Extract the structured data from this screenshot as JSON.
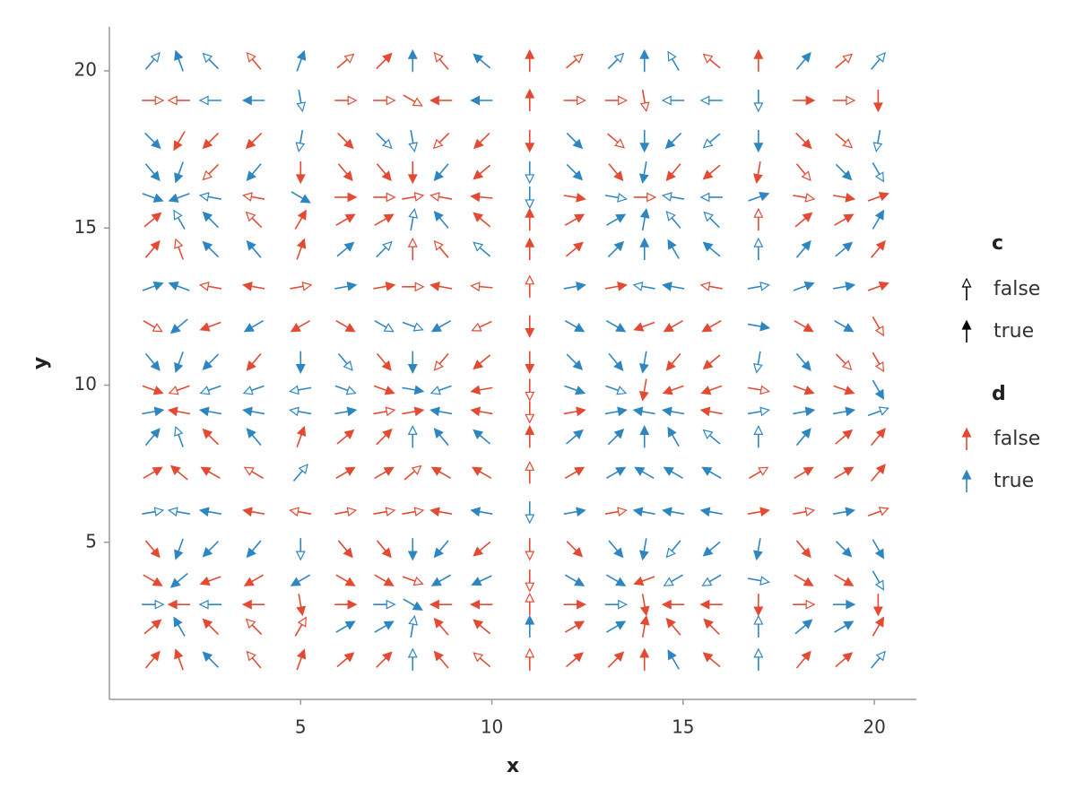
{
  "chart_data": {
    "type": "quiver",
    "xlabel": "x",
    "ylabel": "y",
    "x": [
      1.13,
      1.83,
      2.65,
      3.78,
      5,
      6.17,
      7.18,
      7.93,
      8.68,
      9.74,
      10.99,
      12.16,
      13.24,
      13.99,
      14.75,
      15.75,
      16.97,
      18.15,
      19.2,
      20.1
    ],
    "y": [
      20.31,
      19.06,
      17.78,
      16.78,
      15.98,
      15.26,
      14.32,
      13.13,
      11.88,
      10.74,
      9.86,
      9.15,
      8.35,
      7.21,
      5.96,
      4.79,
      3.79,
      3.02,
      2.31,
      1.26
    ],
    "angles": [
      [
        50,
        110,
        135,
        130,
        70,
        40,
        45,
        90,
        130,
        140,
        90,
        40,
        45,
        90,
        120,
        140,
        90,
        50,
        40,
        50
      ],
      [
        0,
        180,
        180,
        180,
        -80,
        0,
        0,
        -30,
        180,
        180,
        90,
        0,
        0,
        -80,
        180,
        180,
        -90,
        0,
        0,
        -90
      ],
      [
        -45,
        -120,
        -135,
        -135,
        -100,
        -45,
        -45,
        -80,
        -135,
        -135,
        -90,
        -45,
        -40,
        -90,
        -135,
        -140,
        -90,
        -45,
        -40,
        -100
      ],
      [
        -50,
        -110,
        -135,
        -130,
        -90,
        -50,
        -50,
        -90,
        -130,
        -140,
        -90,
        -45,
        -50,
        -100,
        -130,
        -140,
        -100,
        -50,
        -45,
        -60
      ],
      [
        -20,
        -160,
        170,
        170,
        -30,
        0,
        0,
        10,
        170,
        175,
        -90,
        -10,
        -10,
        0,
        170,
        180,
        20,
        -10,
        -10,
        20
      ],
      [
        40,
        120,
        135,
        135,
        60,
        30,
        30,
        80,
        130,
        140,
        90,
        30,
        30,
        80,
        130,
        135,
        90,
        40,
        30,
        60
      ],
      [
        50,
        110,
        135,
        130,
        70,
        40,
        45,
        90,
        130,
        140,
        90,
        40,
        45,
        90,
        120,
        140,
        90,
        50,
        40,
        50
      ],
      [
        20,
        160,
        170,
        170,
        10,
        10,
        10,
        0,
        170,
        175,
        90,
        10,
        10,
        170,
        170,
        170,
        10,
        20,
        10,
        20
      ],
      [
        -30,
        -140,
        -160,
        -150,
        -150,
        -30,
        -30,
        -20,
        -150,
        -155,
        -90,
        -30,
        -30,
        -160,
        -150,
        -150,
        -10,
        -30,
        -30,
        -60
      ],
      [
        -50,
        -110,
        -135,
        -130,
        -90,
        -50,
        -50,
        -90,
        -130,
        -140,
        -90,
        -45,
        -50,
        -100,
        -130,
        -140,
        -100,
        -50,
        -45,
        -60
      ],
      [
        -20,
        -160,
        -160,
        -160,
        -170,
        -20,
        -20,
        -10,
        -160,
        -170,
        -90,
        -20,
        -20,
        -100,
        -160,
        -160,
        -10,
        -20,
        -20,
        -60
      ],
      [
        10,
        170,
        170,
        170,
        170,
        10,
        10,
        10,
        170,
        170,
        -90,
        10,
        10,
        170,
        170,
        170,
        10,
        10,
        10,
        20
      ],
      [
        50,
        110,
        135,
        130,
        70,
        40,
        45,
        90,
        130,
        140,
        90,
        40,
        45,
        90,
        120,
        140,
        90,
        50,
        40,
        50
      ],
      [
        30,
        140,
        150,
        150,
        50,
        30,
        30,
        40,
        150,
        150,
        90,
        30,
        30,
        150,
        150,
        150,
        30,
        30,
        30,
        50
      ],
      [
        10,
        170,
        170,
        170,
        170,
        10,
        10,
        10,
        170,
        170,
        -90,
        10,
        10,
        170,
        170,
        170,
        10,
        10,
        10,
        20
      ],
      [
        -50,
        -110,
        -135,
        -130,
        -90,
        -50,
        -50,
        -90,
        -130,
        -140,
        -90,
        -45,
        -50,
        -100,
        -130,
        -140,
        -100,
        -50,
        -45,
        -60
      ],
      [
        -30,
        -140,
        -160,
        -150,
        -150,
        -30,
        -30,
        -20,
        -150,
        -155,
        -90,
        -30,
        -30,
        -160,
        -150,
        -150,
        -10,
        -30,
        -30,
        -60
      ],
      [
        0,
        180,
        180,
        180,
        -80,
        0,
        0,
        -30,
        180,
        180,
        90,
        0,
        0,
        -80,
        180,
        180,
        -90,
        0,
        0,
        -90
      ],
      [
        40,
        120,
        135,
        135,
        60,
        30,
        30,
        80,
        130,
        140,
        90,
        30,
        30,
        80,
        130,
        135,
        90,
        40,
        30,
        60
      ],
      [
        50,
        110,
        135,
        130,
        70,
        40,
        45,
        90,
        130,
        140,
        90,
        40,
        45,
        90,
        120,
        140,
        90,
        50,
        40,
        50
      ]
    ],
    "c": [
      [
        false,
        true,
        false,
        false,
        true,
        false,
        true,
        true,
        false,
        true,
        true,
        false,
        false,
        true,
        false,
        false,
        true,
        true,
        false,
        false
      ],
      [
        false,
        false,
        false,
        true,
        false,
        false,
        false,
        false,
        true,
        true,
        true,
        false,
        false,
        false,
        false,
        false,
        false,
        true,
        false,
        true
      ],
      [
        true,
        true,
        true,
        true,
        false,
        true,
        false,
        false,
        false,
        true,
        true,
        true,
        false,
        true,
        true,
        false,
        true,
        true,
        false,
        false
      ],
      [
        true,
        true,
        false,
        true,
        true,
        true,
        true,
        true,
        true,
        true,
        false,
        true,
        true,
        true,
        true,
        true,
        true,
        false,
        true,
        false
      ],
      [
        true,
        true,
        false,
        false,
        true,
        true,
        false,
        false,
        false,
        true,
        false,
        true,
        false,
        false,
        false,
        false,
        true,
        false,
        true,
        true
      ],
      [
        true,
        false,
        true,
        false,
        true,
        true,
        true,
        false,
        true,
        true,
        true,
        true,
        true,
        true,
        false,
        false,
        false,
        true,
        true,
        true
      ],
      [
        true,
        false,
        true,
        true,
        true,
        true,
        false,
        false,
        false,
        false,
        true,
        true,
        true,
        true,
        true,
        true,
        false,
        true,
        true,
        true
      ],
      [
        true,
        true,
        false,
        true,
        false,
        true,
        true,
        false,
        true,
        false,
        false,
        true,
        true,
        false,
        true,
        false,
        false,
        true,
        true,
        true
      ],
      [
        false,
        true,
        true,
        true,
        true,
        true,
        false,
        false,
        true,
        false,
        true,
        true,
        true,
        true,
        true,
        true,
        true,
        true,
        true,
        false
      ],
      [
        true,
        true,
        true,
        true,
        true,
        false,
        true,
        true,
        false,
        true,
        true,
        true,
        true,
        true,
        true,
        true,
        false,
        true,
        false,
        false
      ],
      [
        true,
        false,
        false,
        false,
        false,
        false,
        true,
        true,
        false,
        true,
        false,
        true,
        false,
        true,
        true,
        true,
        false,
        true,
        true,
        true
      ],
      [
        true,
        true,
        true,
        true,
        false,
        true,
        false,
        true,
        true,
        true,
        false,
        true,
        true,
        true,
        true,
        true,
        false,
        true,
        true,
        false
      ],
      [
        true,
        false,
        true,
        true,
        true,
        true,
        true,
        false,
        true,
        true,
        true,
        true,
        true,
        true,
        true,
        false,
        false,
        true,
        true,
        true
      ],
      [
        true,
        true,
        true,
        false,
        false,
        true,
        true,
        false,
        true,
        true,
        false,
        true,
        true,
        true,
        true,
        true,
        false,
        true,
        true,
        true
      ],
      [
        false,
        false,
        true,
        true,
        false,
        false,
        false,
        false,
        true,
        true,
        false,
        true,
        false,
        true,
        true,
        true,
        true,
        false,
        true,
        false
      ],
      [
        true,
        true,
        true,
        true,
        false,
        true,
        true,
        true,
        true,
        true,
        false,
        true,
        true,
        true,
        false,
        true,
        true,
        true,
        true,
        true
      ],
      [
        true,
        true,
        true,
        true,
        true,
        true,
        true,
        false,
        true,
        true,
        false,
        true,
        true,
        true,
        false,
        false,
        false,
        true,
        true,
        false
      ],
      [
        false,
        true,
        false,
        true,
        true,
        true,
        false,
        true,
        true,
        true,
        false,
        true,
        false,
        true,
        true,
        true,
        true,
        false,
        true,
        true
      ],
      [
        true,
        true,
        true,
        false,
        false,
        true,
        true,
        false,
        true,
        true,
        true,
        true,
        true,
        true,
        true,
        true,
        false,
        true,
        true,
        true
      ],
      [
        true,
        true,
        true,
        false,
        true,
        true,
        true,
        false,
        true,
        false,
        false,
        true,
        true,
        true,
        true,
        true,
        false,
        true,
        true,
        false
      ]
    ],
    "d": [
      [
        true,
        true,
        true,
        false,
        true,
        false,
        false,
        true,
        false,
        true,
        false,
        false,
        true,
        true,
        true,
        false,
        false,
        true,
        false,
        true
      ],
      [
        false,
        false,
        true,
        true,
        true,
        false,
        false,
        false,
        false,
        true,
        false,
        false,
        false,
        false,
        true,
        true,
        true,
        false,
        false,
        false
      ],
      [
        true,
        false,
        false,
        false,
        true,
        false,
        true,
        true,
        false,
        false,
        false,
        true,
        false,
        true,
        true,
        true,
        true,
        false,
        false,
        true
      ],
      [
        true,
        true,
        false,
        true,
        false,
        false,
        false,
        false,
        true,
        false,
        true,
        true,
        false,
        true,
        false,
        false,
        false,
        false,
        true,
        true
      ],
      [
        true,
        true,
        true,
        false,
        true,
        false,
        false,
        false,
        false,
        false,
        true,
        false,
        true,
        false,
        true,
        true,
        true,
        false,
        false,
        false
      ],
      [
        false,
        true,
        true,
        false,
        false,
        false,
        false,
        true,
        true,
        false,
        false,
        false,
        true,
        true,
        true,
        true,
        false,
        false,
        false,
        true
      ],
      [
        false,
        false,
        true,
        true,
        false,
        true,
        true,
        false,
        false,
        true,
        false,
        false,
        true,
        true,
        true,
        true,
        true,
        true,
        true,
        false
      ],
      [
        true,
        true,
        false,
        false,
        false,
        true,
        false,
        false,
        false,
        false,
        false,
        true,
        false,
        true,
        true,
        false,
        true,
        true,
        true,
        false
      ],
      [
        false,
        true,
        false,
        true,
        false,
        false,
        true,
        true,
        true,
        false,
        false,
        true,
        true,
        false,
        false,
        false,
        true,
        false,
        true,
        false
      ],
      [
        true,
        true,
        true,
        false,
        true,
        true,
        false,
        true,
        false,
        false,
        false,
        true,
        true,
        true,
        false,
        false,
        true,
        true,
        false,
        false
      ],
      [
        false,
        false,
        true,
        true,
        true,
        true,
        false,
        true,
        true,
        false,
        false,
        true,
        true,
        false,
        false,
        false,
        false,
        false,
        false,
        true
      ],
      [
        true,
        false,
        true,
        true,
        true,
        true,
        false,
        false,
        true,
        false,
        false,
        false,
        true,
        true,
        true,
        false,
        true,
        true,
        true,
        true
      ],
      [
        true,
        true,
        false,
        true,
        false,
        false,
        false,
        true,
        true,
        true,
        false,
        true,
        true,
        true,
        true,
        true,
        true,
        true,
        false,
        false
      ],
      [
        false,
        false,
        false,
        false,
        true,
        false,
        false,
        false,
        false,
        false,
        false,
        false,
        true,
        true,
        true,
        true,
        false,
        false,
        false,
        false
      ],
      [
        true,
        true,
        true,
        false,
        false,
        false,
        false,
        false,
        false,
        true,
        true,
        true,
        false,
        true,
        true,
        true,
        false,
        false,
        true,
        false
      ],
      [
        false,
        true,
        true,
        true,
        true,
        false,
        false,
        true,
        true,
        false,
        false,
        false,
        true,
        true,
        true,
        true,
        true,
        false,
        true,
        true
      ],
      [
        false,
        true,
        false,
        false,
        true,
        false,
        false,
        false,
        true,
        true,
        false,
        true,
        true,
        false,
        true,
        true,
        true,
        false,
        false,
        true
      ],
      [
        true,
        false,
        true,
        false,
        false,
        false,
        true,
        true,
        false,
        false,
        false,
        false,
        true,
        false,
        false,
        false,
        false,
        false,
        true,
        false
      ],
      [
        false,
        true,
        false,
        false,
        false,
        true,
        true,
        true,
        false,
        false,
        true,
        false,
        true,
        false,
        false,
        false,
        true,
        true,
        true,
        false
      ],
      [
        false,
        false,
        true,
        false,
        false,
        false,
        false,
        true,
        false,
        false,
        false,
        false,
        false,
        false,
        true,
        false,
        true,
        false,
        false,
        true
      ]
    ],
    "xlim": [
      0,
      21.1
    ],
    "ylim": [
      0,
      21.4
    ],
    "xticks": [
      5,
      10,
      15,
      20
    ],
    "yticks": [
      5,
      10,
      15,
      20
    ],
    "legends": [
      {
        "title": "c",
        "labels": [
          "false",
          "true"
        ],
        "color": "#000000"
      },
      {
        "title": "d",
        "labels": [
          "false",
          "true"
        ],
        "colors": [
          "#e34a33",
          "#2e86c1"
        ]
      }
    ]
  }
}
